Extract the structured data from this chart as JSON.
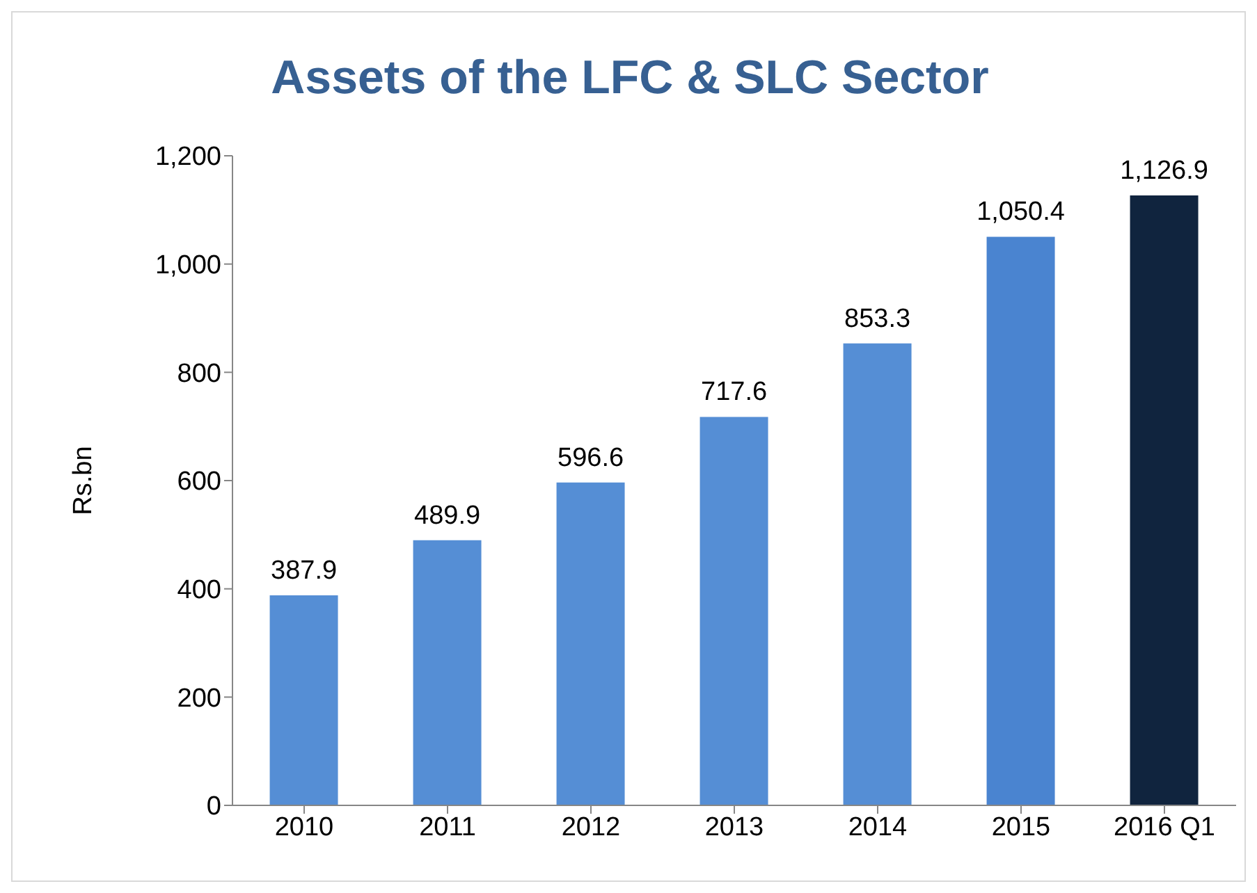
{
  "chart_data": {
    "type": "bar",
    "title": "Assets of the LFC & SLC Sector",
    "ylabel": "Rs.bn",
    "categories": [
      "2010",
      "2011",
      "2012",
      "2013",
      "2014",
      "2015",
      "2016 Q1"
    ],
    "values": [
      387.9,
      489.9,
      596.6,
      717.6,
      853.3,
      1050.4,
      1126.9
    ],
    "colors": [
      "#558ed5",
      "#558ed5",
      "#558ed5",
      "#558ed5",
      "#558ed5",
      "#4a84d0",
      "#10243e"
    ],
    "value_labels": [
      "387.9",
      "489.9",
      "596.6",
      "717.6",
      "853.3",
      "1,050.4",
      "1,126.9"
    ],
    "ylim": [
      0,
      1200
    ],
    "yticks": [
      0,
      200,
      400,
      600,
      800,
      {
        "value": 1000,
        "label": "1,000"
      },
      {
        "value": 1200,
        "label": "1,200"
      }
    ],
    "grid": false,
    "legend": false
  }
}
